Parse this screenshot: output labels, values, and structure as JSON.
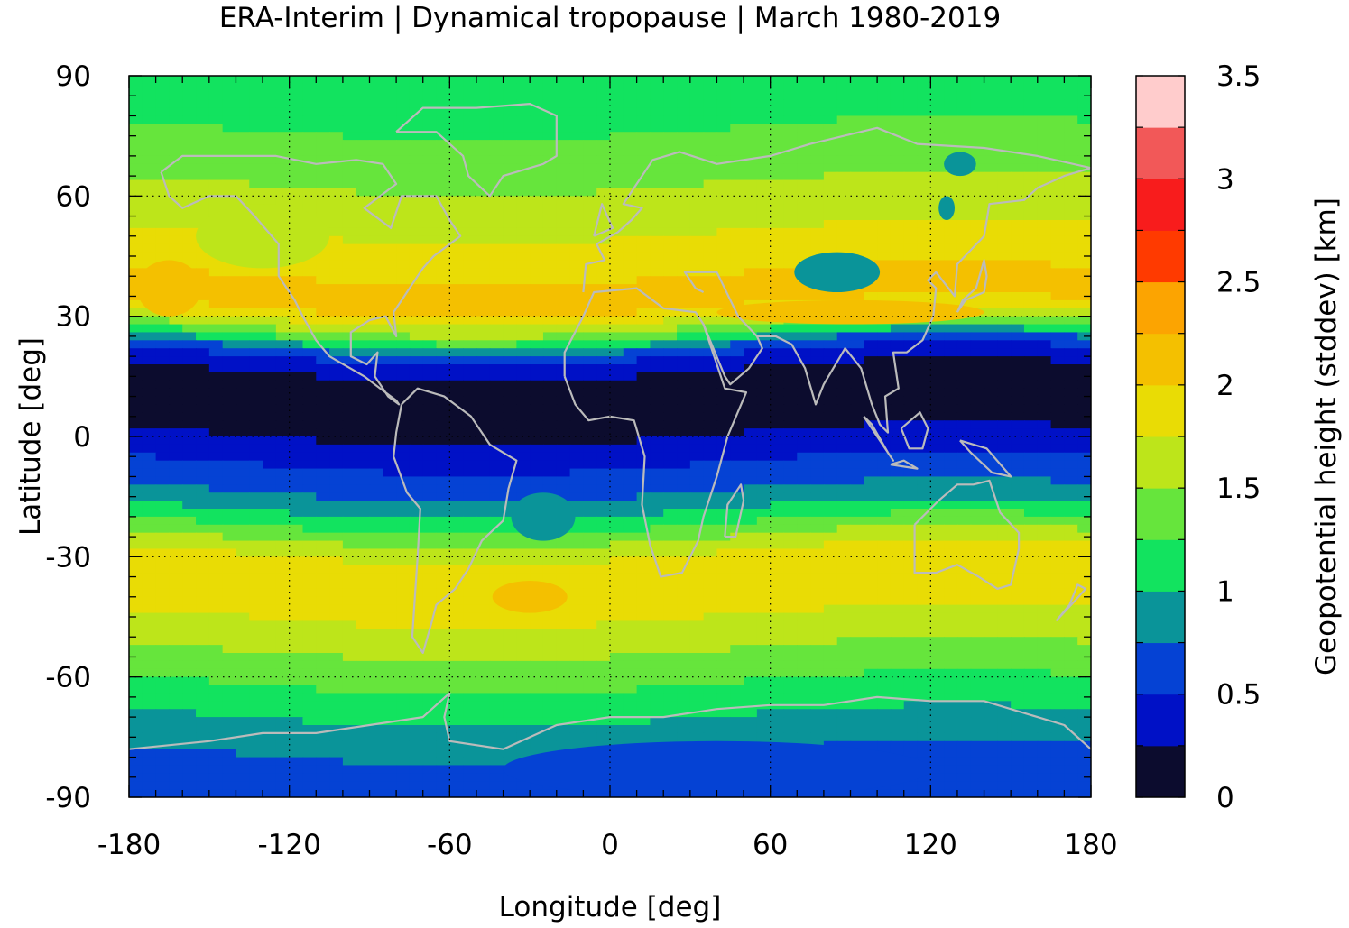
{
  "chart_data": {
    "type": "heatmap",
    "title": "ERA-Interim | Dynamical tropopause | March 1980-2019",
    "xlabel": "Longitude [deg]",
    "ylabel": "Latitude [deg]",
    "colorbar_label": "Geopotential height (stddev) [km]",
    "xlim": [
      -180,
      180
    ],
    "ylim": [
      -90,
      90
    ],
    "xticks": [
      -180,
      -120,
      -60,
      0,
      60,
      120,
      180
    ],
    "yticks": [
      90,
      60,
      30,
      0,
      -30,
      -60,
      -90
    ],
    "xtick_labels": [
      "-180",
      "-120",
      "-60",
      "0",
      "60",
      "120",
      "180"
    ],
    "ytick_labels": [
      "90",
      "60",
      "30",
      "0",
      "-30",
      "-60",
      "-90"
    ],
    "grid": true,
    "colorbar_range": [
      0,
      3.5
    ],
    "colorbar_ticks": [
      0,
      0.5,
      1,
      1.5,
      2,
      2.5,
      3,
      3.5
    ],
    "colorbar_tick_labels": [
      "0",
      "0.5",
      "1",
      "1.5",
      "2",
      "2.5",
      "3",
      "3.5"
    ],
    "color_levels": [
      {
        "from": 0.0,
        "to": 0.25,
        "color": "#0c0c2e"
      },
      {
        "from": 0.25,
        "to": 0.5,
        "color": "#0011c6"
      },
      {
        "from": 0.5,
        "to": 0.75,
        "color": "#0542d4"
      },
      {
        "from": 0.75,
        "to": 1.0,
        "color": "#0a9499"
      },
      {
        "from": 1.0,
        "to": 1.25,
        "color": "#12e35f"
      },
      {
        "from": 1.25,
        "to": 1.5,
        "color": "#66e53c"
      },
      {
        "from": 1.5,
        "to": 1.75,
        "color": "#bde51a"
      },
      {
        "from": 1.75,
        "to": 2.0,
        "color": "#e9dc05"
      },
      {
        "from": 2.0,
        "to": 2.25,
        "color": "#f4c000"
      },
      {
        "from": 2.25,
        "to": 2.5,
        "color": "#fca401"
      },
      {
        "from": 2.5,
        "to": 2.75,
        "color": "#ff3a00"
      },
      {
        "from": 2.75,
        "to": 3.0,
        "color": "#f81c1c"
      },
      {
        "from": 3.0,
        "to": 3.25,
        "color": "#f25858"
      },
      {
        "from": 3.25,
        "to": 3.5,
        "color": "#ffcccc"
      }
    ],
    "zonal_profile": {
      "lat": [
        90,
        80,
        70,
        62,
        55,
        45,
        35,
        30,
        25,
        22,
        19,
        16,
        12,
        5,
        0,
        -5,
        -10,
        -16,
        -20,
        -23,
        -26,
        -30,
        -35,
        -45,
        -55,
        -60,
        -65,
        -70,
        -75,
        -80,
        -85,
        -90
      ],
      "stddev": [
        1.1,
        1.15,
        1.3,
        1.45,
        1.6,
        1.8,
        2.05,
        2.1,
        1.6,
        1.2,
        0.7,
        0.4,
        0.2,
        0.1,
        0.1,
        0.35,
        0.5,
        0.7,
        0.9,
        1.1,
        1.3,
        1.6,
        1.9,
        1.85,
        1.55,
        1.4,
        1.25,
        1.1,
        0.95,
        0.8,
        0.7,
        0.65
      ]
    },
    "coastline_color": "#bbbbbb"
  }
}
